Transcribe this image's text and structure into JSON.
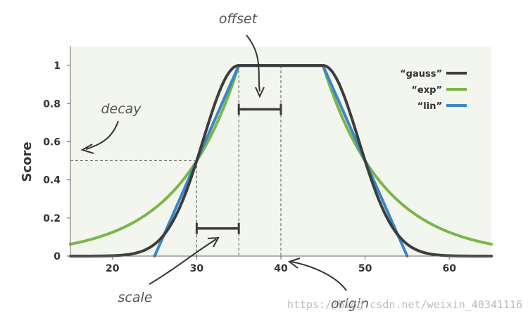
{
  "chart_data": {
    "type": "line",
    "title": "",
    "xlabel": "",
    "ylabel": "Score",
    "xlim": [
      15,
      65
    ],
    "ylim": [
      0,
      1.1
    ],
    "x_ticks": [
      "20",
      "30",
      "40",
      "50",
      "60"
    ],
    "x_tick_values": [
      20,
      30,
      40,
      50,
      60
    ],
    "y_ticks": [
      "0",
      "0.2",
      "0.4",
      "0.6",
      "0.8",
      "1"
    ],
    "y_tick_values": [
      0,
      0.2,
      0.4,
      0.6,
      0.8,
      1
    ],
    "grid": false,
    "legend_position": "top-right",
    "x": [
      15,
      17.5,
      20,
      22.5,
      25,
      27.5,
      30,
      32.5,
      35,
      40,
      45,
      47.5,
      50,
      52.5,
      55,
      57.5,
      60,
      62.5,
      65
    ],
    "series": [
      {
        "name": "“gauss”",
        "color": "#3d3d3d",
        "values": [
          0.0,
          0.001,
          0.004,
          0.02,
          0.063,
          0.177,
          0.5,
          0.841,
          1,
          1,
          1,
          0.841,
          0.5,
          0.177,
          0.063,
          0.02,
          0.004,
          0.001,
          0.0
        ]
      },
      {
        "name": "“exp”",
        "color": "#7ab648",
        "values": [
          0.063,
          0.089,
          0.125,
          0.177,
          0.25,
          0.354,
          0.5,
          0.707,
          1,
          1,
          1,
          0.707,
          0.5,
          0.354,
          0.25,
          0.177,
          0.125,
          0.089,
          0.063
        ]
      },
      {
        "name": "“lin”",
        "color": "#3a86c8",
        "values": [
          null,
          null,
          null,
          null,
          0,
          0.25,
          0.5,
          0.75,
          1,
          1,
          1,
          0.75,
          0.5,
          0.25,
          0,
          null,
          null,
          null,
          null
        ]
      }
    ],
    "annotations": [
      {
        "text": "offset"
      },
      {
        "text": "decay"
      },
      {
        "text": "scale"
      },
      {
        "text": "origin"
      }
    ]
  },
  "watermark": "https://blog.csdn.net/weixin_40341116",
  "colors": {
    "plot_background": "#f3f6ee",
    "axis": "#333333",
    "annotation": "#555555",
    "bracket": "#3d3d3d"
  }
}
